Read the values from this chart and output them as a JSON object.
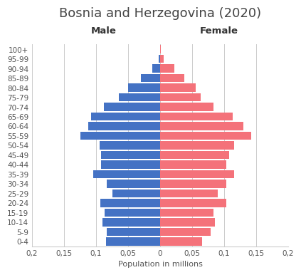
{
  "title": "Bosnia and Herzegovina (2020)",
  "xlabel": "Population in millions",
  "male_label": "Male",
  "female_label": "Female",
  "age_groups": [
    "0-4",
    "5-9",
    "10-14",
    "15-19",
    "20-24",
    "25-29",
    "30-34",
    "35-39",
    "40-44",
    "45-49",
    "50-54",
    "55-59",
    "60-64",
    "65-69",
    "70-74",
    "75-79",
    "80-84",
    "85-89",
    "90-94",
    "95-99",
    "100+"
  ],
  "male_values": [
    0.085,
    0.083,
    0.09,
    0.087,
    0.093,
    0.075,
    0.083,
    0.105,
    0.092,
    0.092,
    0.095,
    0.125,
    0.112,
    0.108,
    0.088,
    0.065,
    0.05,
    0.03,
    0.012,
    0.002,
    0.0005
  ],
  "female_values": [
    0.066,
    0.079,
    0.086,
    0.083,
    0.103,
    0.09,
    0.103,
    0.115,
    0.103,
    0.108,
    0.115,
    0.142,
    0.13,
    0.113,
    0.083,
    0.063,
    0.055,
    0.038,
    0.022,
    0.005,
    0.001
  ],
  "male_color": "#4472C4",
  "female_color": "#F4727A",
  "xlim": 0.2,
  "xticks": [
    -0.2,
    -0.15,
    -0.1,
    -0.05,
    0,
    0.05,
    0.1,
    0.15,
    0.2
  ],
  "xticklabels": [
    "0,2",
    "0,15",
    "0,1",
    "0,05",
    "0",
    "0,05",
    "0,1",
    "0,15",
    "0,2"
  ],
  "background_color": "#ffffff",
  "grid_color": "#cccccc",
  "title_fontsize": 13,
  "label_fontsize": 8,
  "tick_fontsize": 7.5
}
